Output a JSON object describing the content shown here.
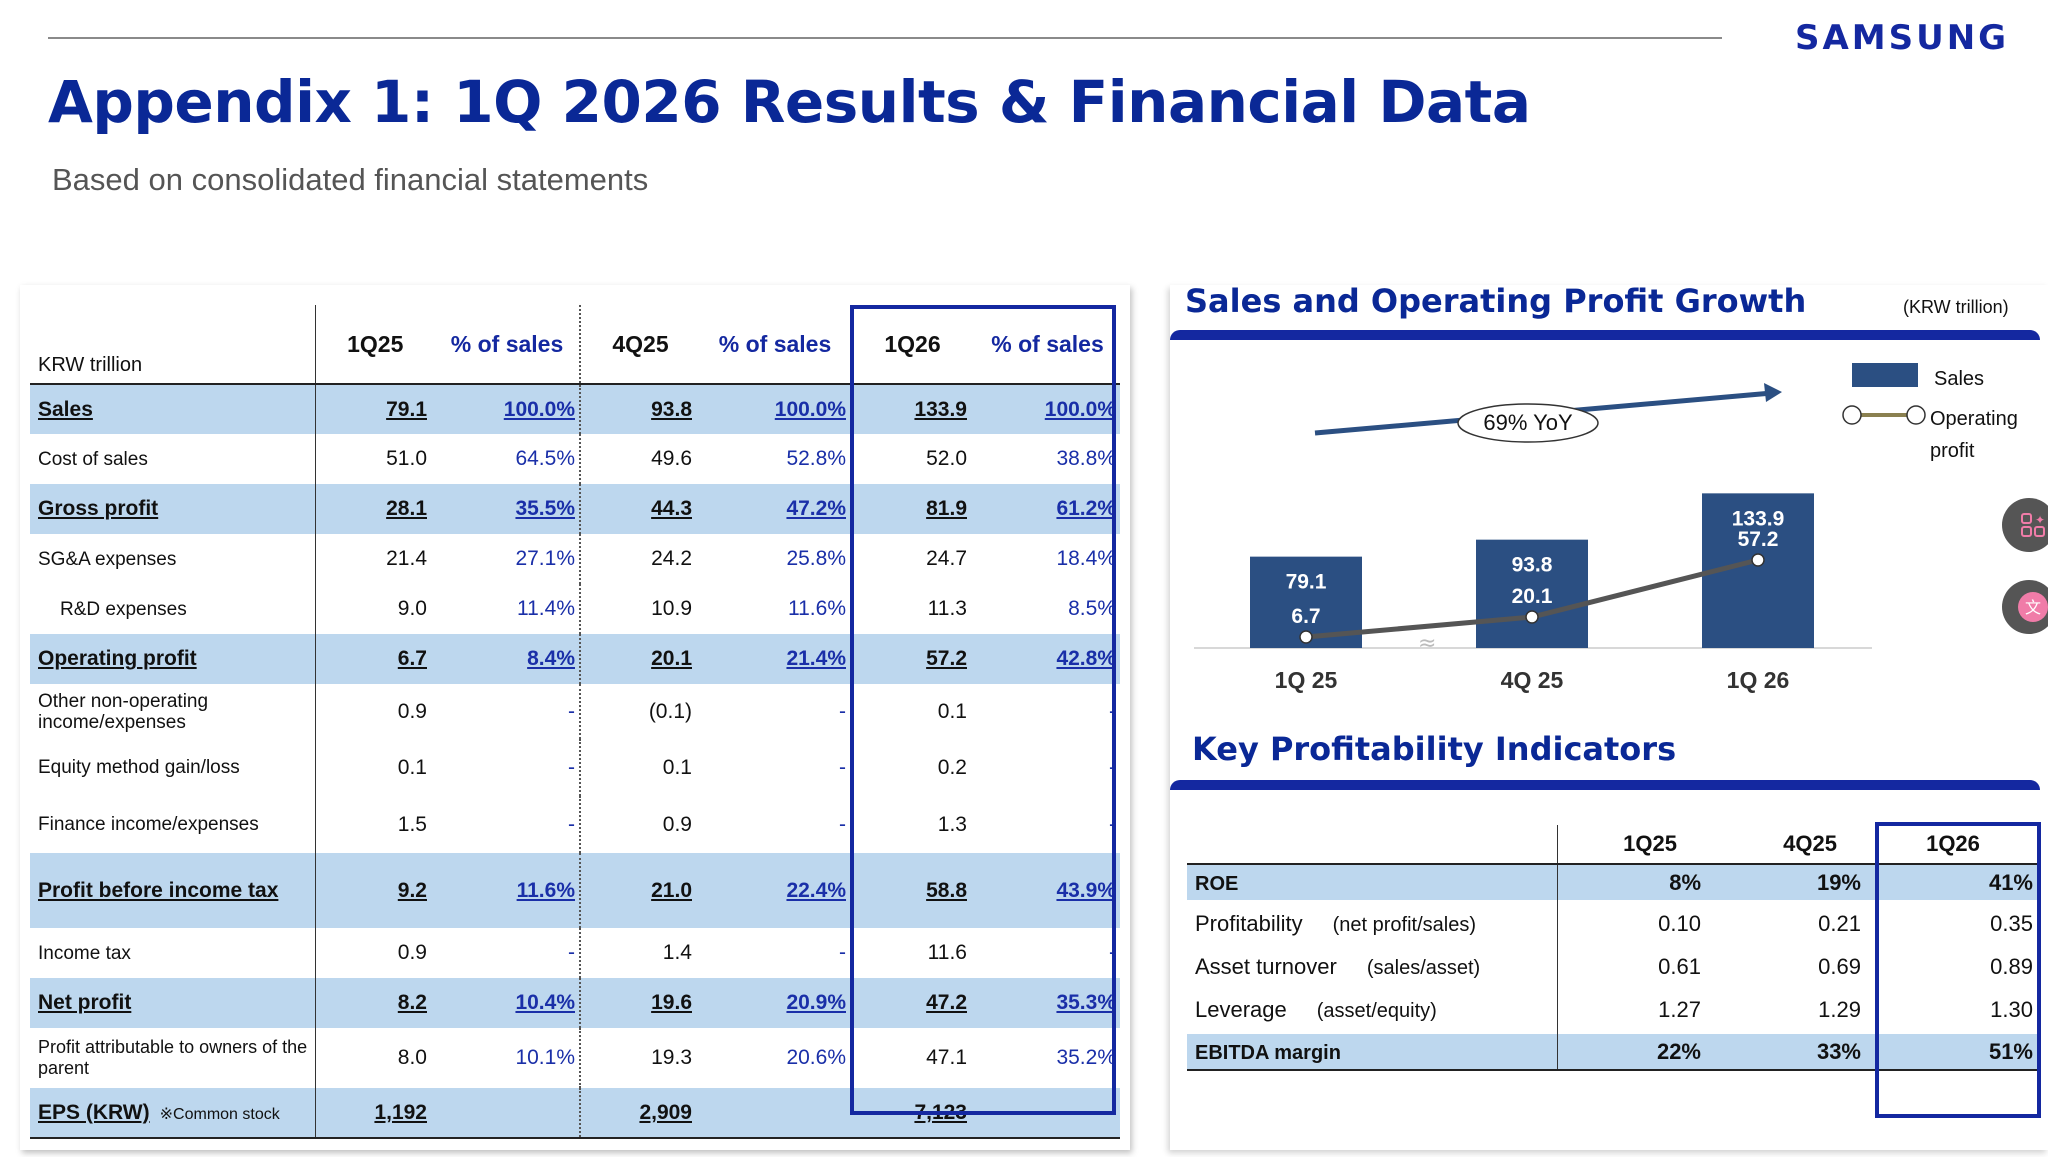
{
  "header": {
    "logo": "SAMSUNG",
    "title": "Appendix 1:  1Q 2026 Results & Financial Data",
    "subtitle": "Based on consolidated financial statements"
  },
  "fin_table": {
    "unit_label": "KRW trillion",
    "columns": [
      "1Q25",
      "% of sales",
      "4Q25",
      "% of sales",
      "1Q26",
      "% of sales"
    ],
    "rows": [
      {
        "label": "Sales",
        "bold": true,
        "highlight": true,
        "values": [
          "79.1",
          "100.0%",
          "93.8",
          "100.0%",
          "133.9",
          "100.0%"
        ]
      },
      {
        "label": "Cost of sales",
        "values": [
          "51.0",
          "64.5%",
          "49.6",
          "52.8%",
          "52.0",
          "38.8%"
        ]
      },
      {
        "label": "Gross profit",
        "bold": true,
        "highlight": true,
        "values": [
          "28.1",
          "35.5%",
          "44.3",
          "47.2%",
          "81.9",
          "61.2%"
        ]
      },
      {
        "label": "SG&A expenses",
        "values": [
          "21.4",
          "27.1%",
          "24.2",
          "25.8%",
          "24.7",
          "18.4%"
        ]
      },
      {
        "label": "R&D expenses",
        "indent": true,
        "values": [
          "9.0",
          "11.4%",
          "10.9",
          "11.6%",
          "11.3",
          "8.5%"
        ]
      },
      {
        "label": "Operating profit",
        "bold": true,
        "highlight": true,
        "values": [
          "6.7",
          "8.4%",
          "20.1",
          "21.4%",
          "57.2",
          "42.8%"
        ]
      },
      {
        "label": "Other non-operating income/expenses",
        "values": [
          "0.9",
          "-",
          "(0.1)",
          "-",
          "0.1",
          "-"
        ]
      },
      {
        "label": "Equity method gain/loss",
        "values": [
          "0.1",
          "-",
          "0.1",
          "-",
          "0.2",
          "-"
        ]
      },
      {
        "label": "Finance income/expenses",
        "values": [
          "1.5",
          "-",
          "0.9",
          "-",
          "1.3",
          "-"
        ]
      },
      {
        "label": "Profit before income tax",
        "bold": true,
        "highlight": true,
        "values": [
          "9.2",
          "11.6%",
          "21.0",
          "22.4%",
          "58.8",
          "43.9%"
        ]
      },
      {
        "label": "Income tax",
        "values": [
          "0.9",
          "-",
          "1.4",
          "-",
          "11.6",
          "-"
        ]
      },
      {
        "label": "Net profit",
        "bold": true,
        "highlight": true,
        "values": [
          "8.2",
          "10.4%",
          "19.6",
          "20.9%",
          "47.2",
          "35.3%"
        ]
      },
      {
        "label": "Profit attributable to owners of the parent",
        "values": [
          "8.0",
          "10.1%",
          "19.3",
          "20.6%",
          "47.1",
          "35.2%"
        ]
      },
      {
        "label": "EPS (KRW)",
        "note": "※Common stock",
        "bold": true,
        "highlight": true,
        "values": [
          "1,192",
          "",
          "2,909",
          "",
          "7,123",
          ""
        ]
      }
    ]
  },
  "growth_section": {
    "title": "Sales and Operating Profit Growth",
    "unit": "(KRW trillion)",
    "yoy_label": "69% YoY",
    "legend_sales": "Sales",
    "legend_op": "Operating profit"
  },
  "chart_data": {
    "type": "bar",
    "categories": [
      "1Q 25",
      "4Q 25",
      "1Q 26"
    ],
    "series": [
      {
        "name": "Sales",
        "type": "bar",
        "values": [
          79.1,
          93.8,
          133.9
        ],
        "color": "#2b4f82"
      },
      {
        "name": "Operating profit",
        "type": "line",
        "values": [
          6.7,
          20.1,
          57.2
        ],
        "color": "#555555"
      }
    ],
    "annotations": [
      "69% YoY"
    ]
  },
  "kpi_section": {
    "title": "Key Profitability Indicators",
    "columns": [
      "1Q25",
      "4Q25",
      "1Q26"
    ],
    "rows": [
      {
        "label": "ROE",
        "note": "",
        "highlight": true,
        "values": [
          "8%",
          "19%",
          "41%"
        ]
      },
      {
        "label": "Profitability",
        "note": "(net profit/sales)",
        "values": [
          "0.10",
          "0.21",
          "0.35"
        ]
      },
      {
        "label": "Asset turnover",
        "note": "(sales/asset)",
        "values": [
          "0.61",
          "0.69",
          "0.89"
        ]
      },
      {
        "label": "Leverage",
        "note": "(asset/equity)",
        "values": [
          "1.27",
          "1.29",
          "1.30"
        ]
      },
      {
        "label": "EBITDA margin",
        "note": "",
        "highlight": true,
        "values": [
          "22%",
          "33%",
          "51%"
        ]
      }
    ]
  },
  "colors": {
    "brand": "#1428a0",
    "title": "#0a2896",
    "highlight_row": "#bdd7ee",
    "bar": "#2b4f82"
  }
}
